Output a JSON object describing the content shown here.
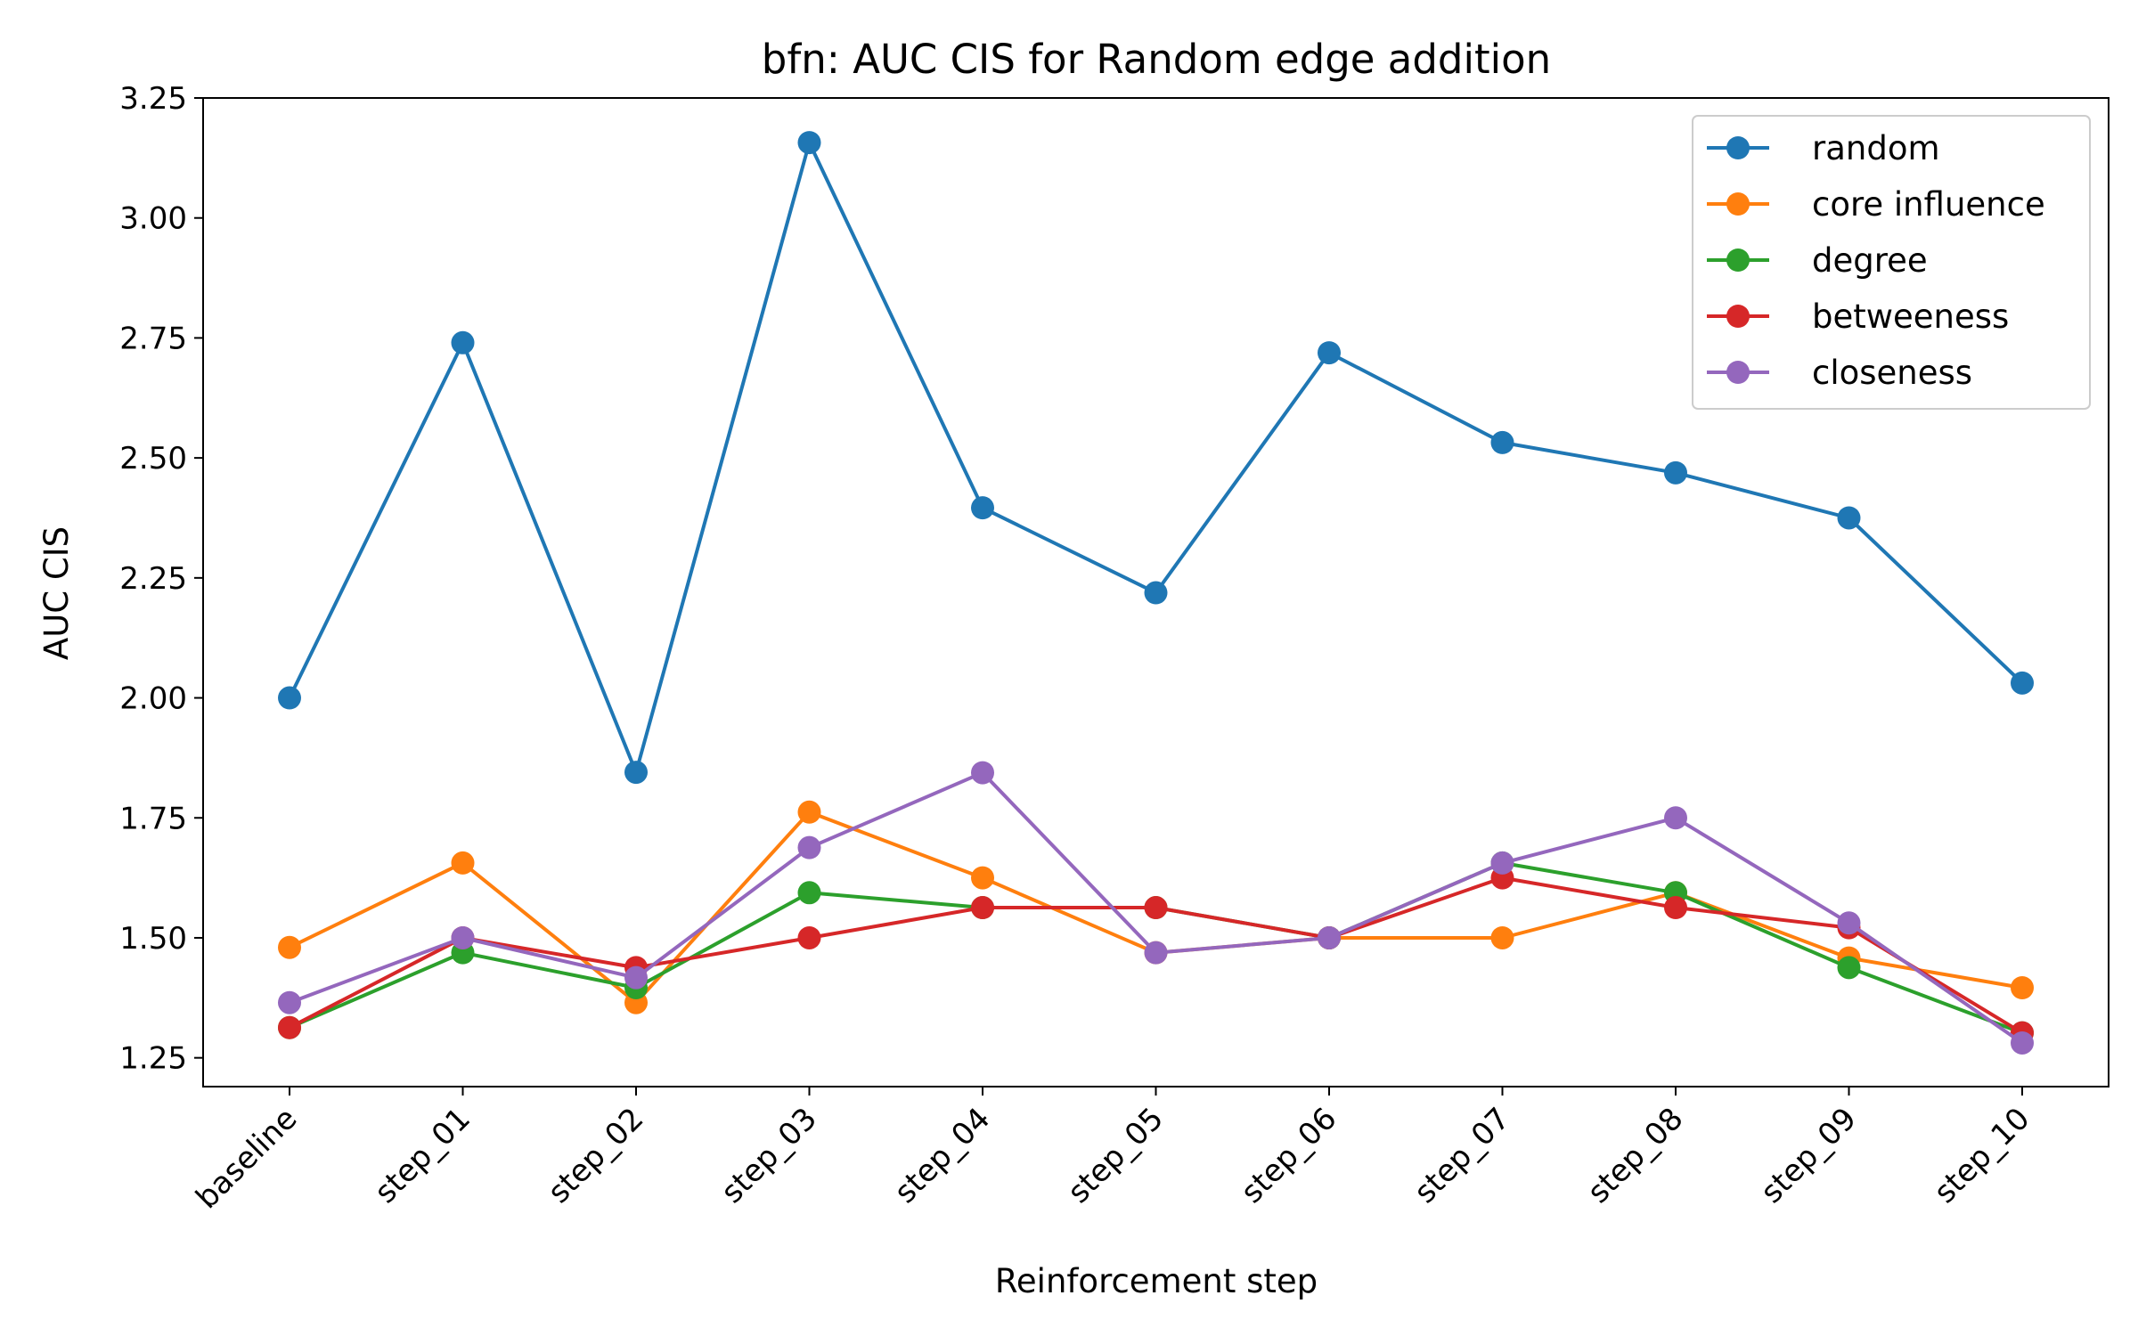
{
  "chart_data": {
    "type": "line",
    "title": "bfn: AUC CIS for Random edge addition",
    "xlabel": "Reinforcement step",
    "ylabel": "AUC CIS",
    "categories": [
      "baseline",
      "step_01",
      "step_02",
      "step_03",
      "step_04",
      "step_05",
      "step_06",
      "step_07",
      "step_08",
      "step_09",
      "step_10"
    ],
    "ylim": [
      1.19,
      3.25
    ],
    "yticks": [
      1.25,
      1.5,
      1.75,
      2.0,
      2.25,
      2.5,
      2.75,
      3.0,
      3.25
    ],
    "ytick_labels": [
      "1.25",
      "1.50",
      "1.75",
      "2.00",
      "2.25",
      "2.50",
      "2.75",
      "3.00",
      "3.25"
    ],
    "grid": false,
    "legend_position": "top-right",
    "marker": "circle",
    "series": [
      {
        "name": "random",
        "color": "#1f77b4",
        "values": [
          2.0,
          2.74,
          1.845,
          3.157,
          2.396,
          2.219,
          2.719,
          2.532,
          2.469,
          2.375,
          2.031
        ]
      },
      {
        "name": "core influence",
        "color": "#ff7f0e",
        "values": [
          1.48,
          1.656,
          1.365,
          1.762,
          1.625,
          1.469,
          1.5,
          1.5,
          1.594,
          1.458,
          1.396
        ]
      },
      {
        "name": "degree",
        "color": "#2ca02c",
        "values": [
          1.313,
          1.469,
          1.396,
          1.594,
          1.563,
          1.563,
          1.5,
          1.656,
          1.594,
          1.438,
          1.302
        ]
      },
      {
        "name": "betweeness",
        "color": "#d62728",
        "values": [
          1.313,
          1.5,
          1.438,
          1.5,
          1.563,
          1.563,
          1.5,
          1.625,
          1.563,
          1.521,
          1.302
        ]
      },
      {
        "name": "closeness",
        "color": "#9467bd",
        "values": [
          1.365,
          1.5,
          1.417,
          1.688,
          1.844,
          1.469,
          1.5,
          1.656,
          1.75,
          1.531,
          1.281
        ]
      }
    ]
  }
}
